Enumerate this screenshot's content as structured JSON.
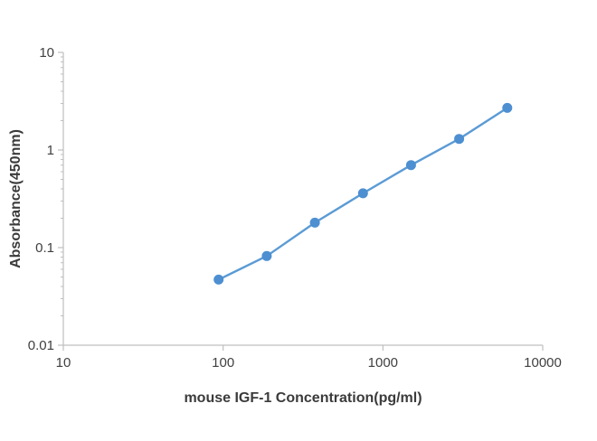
{
  "chart_data": {
    "type": "line",
    "title": "",
    "xlabel": "mouse IGF-1 Concentration(pg/ml)",
    "ylabel": "Absorbance(450nm)",
    "x": [
      93.75,
      187.5,
      375,
      750,
      1500,
      3000,
      6000
    ],
    "y": [
      0.047,
      0.082,
      0.18,
      0.36,
      0.7,
      1.3,
      2.7
    ],
    "x_scale": "log",
    "y_scale": "log",
    "xlim": [
      10,
      10000
    ],
    "ylim": [
      0.01,
      10
    ],
    "x_ticks": [
      10,
      100,
      1000,
      10000
    ],
    "x_tick_labels": [
      "10",
      "100",
      "1000",
      "10000"
    ],
    "y_ticks": [
      0.01,
      0.1,
      1,
      10
    ],
    "y_tick_labels": [
      "0.01",
      "0.1",
      "1",
      "10"
    ],
    "grid": false,
    "legend_position": "none",
    "line_color": "#5B9BD5",
    "marker_color": "#4D8FD1",
    "axis_color": "#BFBFBF"
  }
}
